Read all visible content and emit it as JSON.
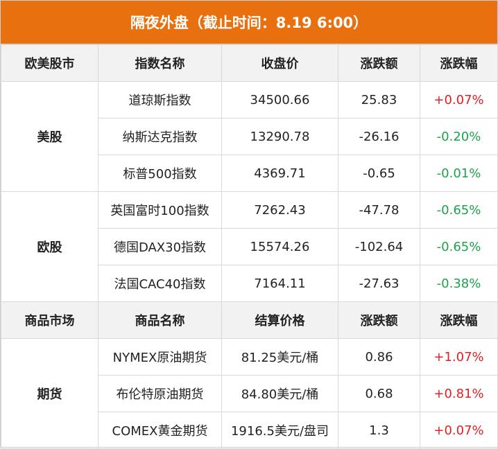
{
  "title": "隔夜外盘（截止时间：8.19 6:00）",
  "colors": {
    "header_bg": "#e8700f",
    "positive": "#e02020",
    "negative": "#1aa34a"
  },
  "indices_section": {
    "headers": [
      "欧美股市",
      "指数名称",
      "收盘价",
      "涨跌额",
      "涨跌幅"
    ],
    "groups": [
      {
        "label": "美股",
        "rows": [
          {
            "name": "道琼斯指数",
            "price": "34500.66",
            "change": "25.83",
            "pct": "+0.07%"
          },
          {
            "name": "纳斯达克指数",
            "price": "13290.78",
            "change": "-26.16",
            "pct": "-0.20%"
          },
          {
            "name": "标普500指数",
            "price": "4369.71",
            "change": "-0.65",
            "pct": "-0.01%"
          }
        ]
      },
      {
        "label": "欧股",
        "rows": [
          {
            "name": "英国富时100指数",
            "price": "7262.43",
            "change": "-47.78",
            "pct": "-0.65%"
          },
          {
            "name": "德国DAX30指数",
            "price": "15574.26",
            "change": "-102.64",
            "pct": "-0.65%"
          },
          {
            "name": "法国CAC40指数",
            "price": "7164.11",
            "change": "-27.63",
            "pct": "-0.38%"
          }
        ]
      }
    ]
  },
  "commodities_section": {
    "headers": [
      "商品市场",
      "商品名称",
      "结算价格",
      "涨跌额",
      "涨跌幅"
    ],
    "groups": [
      {
        "label": "期货",
        "rows": [
          {
            "name": "NYMEX原油期货",
            "price": "81.25美元/桶",
            "change": "0.86",
            "pct": "+1.07%"
          },
          {
            "name": "布伦特原油期货",
            "price": "84.80美元/桶",
            "change": "0.68",
            "pct": "+0.81%"
          },
          {
            "name": "COMEX黄金期货",
            "price": "1916.5美元/盘司",
            "change": "1.3",
            "pct": "+0.07%"
          }
        ]
      }
    ]
  }
}
